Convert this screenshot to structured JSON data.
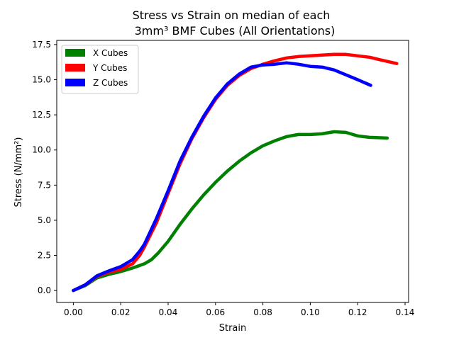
{
  "chart_data": {
    "type": "line",
    "title_lines": [
      "Stress vs Strain on median of each",
      "3mm³ BMF Cubes (All Orientations)"
    ],
    "xlabel": "Strain",
    "ylabel": "Stress (N/mm²)",
    "xlim": [
      -0.007,
      0.1415
    ],
    "ylim": [
      -0.85,
      17.8
    ],
    "x_ticks": [
      0.0,
      0.02,
      0.04,
      0.06,
      0.08,
      0.1,
      0.12,
      0.14
    ],
    "x_tick_labels": [
      "0.00",
      "0.02",
      "0.04",
      "0.06",
      "0.08",
      "0.10",
      "0.12",
      "0.14"
    ],
    "y_ticks": [
      0.0,
      2.5,
      5.0,
      7.5,
      10.0,
      12.5,
      15.0,
      17.5
    ],
    "y_tick_labels": [
      "0.0",
      "2.5",
      "5.0",
      "7.5",
      "10.0",
      "12.5",
      "15.0",
      "17.5"
    ],
    "grid": false,
    "legend_position": "top-left",
    "series": [
      {
        "name": "X Cubes",
        "color": "#008000",
        "points": [
          [
            0.0,
            0.0
          ],
          [
            0.005,
            0.35
          ],
          [
            0.01,
            0.9
          ],
          [
            0.015,
            1.15
          ],
          [
            0.02,
            1.35
          ],
          [
            0.025,
            1.6
          ],
          [
            0.03,
            1.9
          ],
          [
            0.033,
            2.2
          ],
          [
            0.036,
            2.7
          ],
          [
            0.04,
            3.5
          ],
          [
            0.045,
            4.7
          ],
          [
            0.05,
            5.8
          ],
          [
            0.055,
            6.8
          ],
          [
            0.06,
            7.7
          ],
          [
            0.065,
            8.5
          ],
          [
            0.07,
            9.2
          ],
          [
            0.075,
            9.8
          ],
          [
            0.08,
            10.3
          ],
          [
            0.085,
            10.65
          ],
          [
            0.09,
            10.95
          ],
          [
            0.095,
            11.1
          ],
          [
            0.1,
            11.1
          ],
          [
            0.105,
            11.15
          ],
          [
            0.11,
            11.3
          ],
          [
            0.115,
            11.25
          ],
          [
            0.12,
            11.0
          ],
          [
            0.125,
            10.9
          ],
          [
            0.1325,
            10.85
          ]
        ]
      },
      {
        "name": "Y Cubes",
        "color": "#ff0000",
        "points": [
          [
            0.0,
            0.0
          ],
          [
            0.005,
            0.4
          ],
          [
            0.01,
            1.0
          ],
          [
            0.015,
            1.3
          ],
          [
            0.02,
            1.5
          ],
          [
            0.025,
            1.9
          ],
          [
            0.028,
            2.5
          ],
          [
            0.03,
            3.1
          ],
          [
            0.035,
            4.8
          ],
          [
            0.04,
            6.9
          ],
          [
            0.045,
            9.0
          ],
          [
            0.05,
            10.8
          ],
          [
            0.055,
            12.3
          ],
          [
            0.06,
            13.6
          ],
          [
            0.065,
            14.6
          ],
          [
            0.07,
            15.3
          ],
          [
            0.075,
            15.8
          ],
          [
            0.08,
            16.1
          ],
          [
            0.085,
            16.35
          ],
          [
            0.09,
            16.55
          ],
          [
            0.095,
            16.65
          ],
          [
            0.1,
            16.7
          ],
          [
            0.105,
            16.75
          ],
          [
            0.11,
            16.8
          ],
          [
            0.115,
            16.8
          ],
          [
            0.12,
            16.7
          ],
          [
            0.125,
            16.6
          ],
          [
            0.13,
            16.4
          ],
          [
            0.1365,
            16.15
          ]
        ]
      },
      {
        "name": "Z Cubes",
        "color": "#0000ff",
        "points": [
          [
            0.0,
            0.0
          ],
          [
            0.005,
            0.4
          ],
          [
            0.01,
            1.05
          ],
          [
            0.015,
            1.4
          ],
          [
            0.02,
            1.7
          ],
          [
            0.025,
            2.2
          ],
          [
            0.028,
            2.8
          ],
          [
            0.03,
            3.3
          ],
          [
            0.035,
            5.1
          ],
          [
            0.04,
            7.1
          ],
          [
            0.045,
            9.2
          ],
          [
            0.05,
            10.9
          ],
          [
            0.055,
            12.4
          ],
          [
            0.06,
            13.7
          ],
          [
            0.065,
            14.7
          ],
          [
            0.07,
            15.4
          ],
          [
            0.075,
            15.9
          ],
          [
            0.08,
            16.05
          ],
          [
            0.085,
            16.1
          ],
          [
            0.09,
            16.2
          ],
          [
            0.095,
            16.1
          ],
          [
            0.1,
            15.95
          ],
          [
            0.105,
            15.9
          ],
          [
            0.11,
            15.7
          ],
          [
            0.115,
            15.35
          ],
          [
            0.12,
            15.0
          ],
          [
            0.1255,
            14.6
          ]
        ]
      }
    ]
  }
}
